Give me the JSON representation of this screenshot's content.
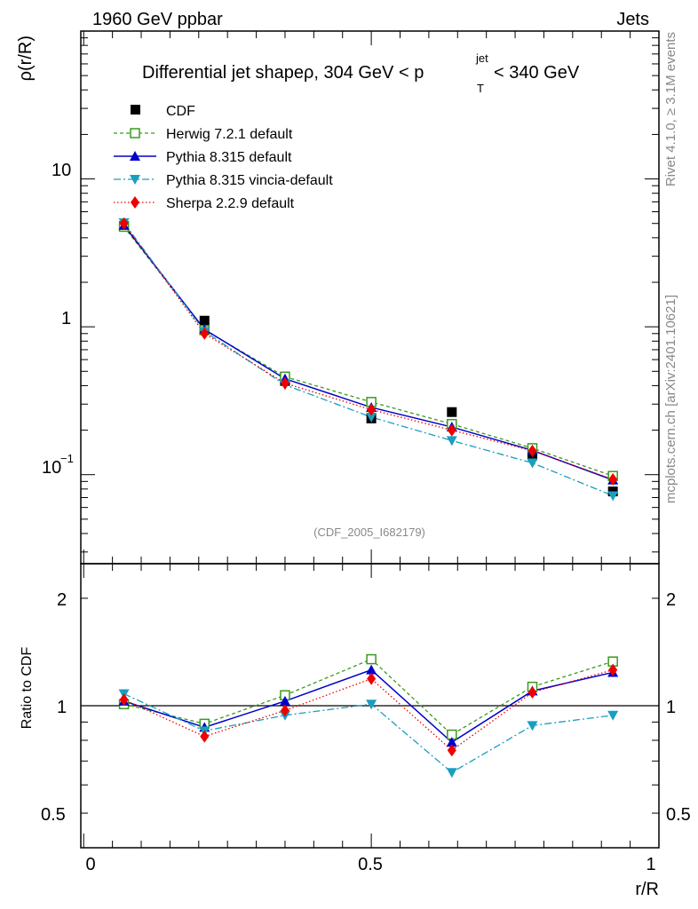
{
  "header": {
    "left": "1960 GeV ppbar",
    "right": "Jets"
  },
  "side_labels": {
    "rivet": "Rivet 4.1.0, ≥ 3.1M events",
    "mcplots": "mcplots.cern.ch [arXiv:2401.10621]"
  },
  "watermark": "(CDF_2005_I682179)",
  "colors": {
    "CDF": "#000000",
    "Herwig": "#3a9a1e",
    "Pythia": "#0000cc",
    "Vincia": "#1a9ec0",
    "Sherpa": "#ee0000"
  },
  "chart_data": [
    {
      "type": "line",
      "panel": "main",
      "title": {
        "prefix": "Differential jet shapeρ, 304 GeV < p",
        "sup": "jet",
        "sub": "T",
        "suffix": " < 340 GeV"
      },
      "ylabel": "ρ(r/R)",
      "yscale": "log",
      "ylim": [
        0.025,
        100
      ],
      "xlim": [
        -0.005,
        1.0
      ],
      "ytick_labels": [
        {
          "value": 0.1,
          "base": "10",
          "exp": "−1"
        },
        {
          "value": 1,
          "base": "1",
          "exp": ""
        },
        {
          "value": 10,
          "base": "10",
          "exp": ""
        }
      ],
      "x": [
        0.07,
        0.21,
        0.35,
        0.5,
        0.64,
        0.78,
        0.92
      ],
      "series": [
        {
          "key": "CDF",
          "name": "CDF",
          "marker": "square",
          "line": "none",
          "values": [
            4.8,
            1.1,
            0.43,
            0.24,
            0.265,
            0.135,
            0.077
          ]
        },
        {
          "key": "Herwig",
          "name": "Herwig 7.2.1 default",
          "marker": "open-square",
          "line": "dashed",
          "values": [
            4.75,
            0.95,
            0.46,
            0.31,
            0.22,
            0.151,
            0.098
          ]
        },
        {
          "key": "Pythia",
          "name": "Pythia 8.315 default",
          "marker": "triangle-up",
          "line": "solid",
          "values": [
            4.85,
            0.96,
            0.445,
            0.285,
            0.21,
            0.146,
            0.092
          ]
        },
        {
          "key": "Vincia",
          "name": "Pythia 8.315 vincia-default",
          "marker": "triangle-down",
          "line": "dashdot",
          "values": [
            5.05,
            0.93,
            0.405,
            0.245,
            0.17,
            0.12,
            0.072
          ]
        },
        {
          "key": "Sherpa",
          "name": "Sherpa 2.2.9 default",
          "marker": "diamond",
          "line": "dotted",
          "values": [
            5.0,
            0.9,
            0.415,
            0.275,
            0.2,
            0.145,
            0.093
          ]
        }
      ]
    },
    {
      "type": "line",
      "panel": "ratio",
      "ylabel": "Ratio to CDF",
      "xlabel": "r/R",
      "yscale": "log",
      "ylim": [
        0.4,
        2.5
      ],
      "xlim": [
        -0.005,
        1.0
      ],
      "reference_line": 1,
      "ytick_labels": [
        {
          "value": 0.5,
          "label": "0.5"
        },
        {
          "value": 1,
          "label": "1"
        },
        {
          "value": 2,
          "label": "2"
        }
      ],
      "xtick_labels": [
        {
          "value": 0,
          "label": "0"
        },
        {
          "value": 0.5,
          "label": "0.5"
        },
        {
          "value": 1,
          "label": "1"
        }
      ],
      "x": [
        0.07,
        0.21,
        0.35,
        0.5,
        0.64,
        0.78,
        0.92
      ],
      "series": [
        {
          "key": "Herwig",
          "name": "Herwig 7.2.1 default",
          "marker": "open-square",
          "line": "dashed",
          "values": [
            1.01,
            0.89,
            1.07,
            1.35,
            0.83,
            1.13,
            1.33
          ]
        },
        {
          "key": "Pythia",
          "name": "Pythia 8.315 default",
          "marker": "triangle-up",
          "line": "solid",
          "values": [
            1.03,
            0.87,
            1.03,
            1.26,
            0.79,
            1.1,
            1.24
          ]
        },
        {
          "key": "Vincia",
          "name": "Pythia 8.315 vincia-default",
          "marker": "triangle-down",
          "line": "dashdot",
          "values": [
            1.08,
            0.85,
            0.94,
            1.01,
            0.65,
            0.88,
            0.94
          ]
        },
        {
          "key": "Sherpa",
          "name": "Sherpa 2.2.9 default",
          "marker": "diamond",
          "line": "dotted",
          "values": [
            1.04,
            0.82,
            0.97,
            1.19,
            0.75,
            1.09,
            1.26
          ]
        }
      ]
    }
  ]
}
